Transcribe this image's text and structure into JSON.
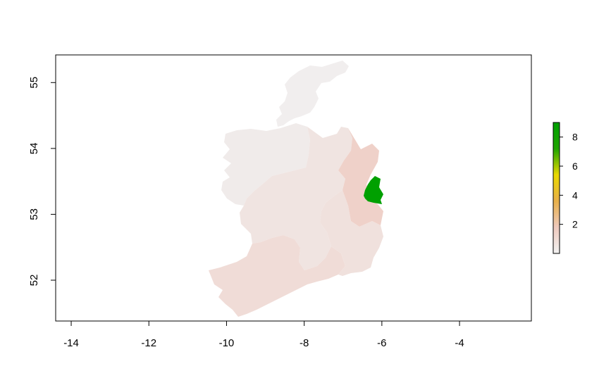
{
  "chart_data": {
    "type": "map",
    "title": "",
    "xlabel": "",
    "ylabel": "",
    "xlim": [
      -14.4,
      -2.15
    ],
    "ylim": [
      51.38,
      55.42
    ],
    "x_ticks": [
      {
        "value": -14,
        "label": "-14"
      },
      {
        "value": -12,
        "label": "-12"
      },
      {
        "value": -10,
        "label": "-10"
      },
      {
        "value": -8,
        "label": "-8"
      },
      {
        "value": -6,
        "label": "-6"
      },
      {
        "value": -4,
        "label": "-4"
      }
    ],
    "y_ticks": [
      {
        "value": 52,
        "label": "52"
      },
      {
        "value": 53,
        "label": "53"
      },
      {
        "value": 54,
        "label": "54"
      },
      {
        "value": 55,
        "label": "55"
      }
    ],
    "colorbar": {
      "min": 0,
      "max": 9,
      "ticks": [
        {
          "value": 2,
          "label": "2"
        },
        {
          "value": 4,
          "label": "4"
        },
        {
          "value": 6,
          "label": "6"
        },
        {
          "value": 8,
          "label": "8"
        }
      ],
      "colors": [
        "#f2f2f2",
        "#eec9bd",
        "#e8b04a",
        "#e9d800",
        "#1fa400",
        "#00a000"
      ]
    },
    "regions": [
      {
        "id": "north-west",
        "value": 0.1,
        "color": "#f1eeee"
      },
      {
        "id": "west",
        "value": 0.2,
        "color": "#f0ebea"
      },
      {
        "id": "midlands",
        "value": 0.4,
        "color": "#f0e4e1"
      },
      {
        "id": "south-west",
        "value": 0.7,
        "color": "#f0dcd7"
      },
      {
        "id": "south-east",
        "value": 0.5,
        "color": "#f0e1dd"
      },
      {
        "id": "mid-east",
        "value": 1.2,
        "color": "#efd1c9"
      },
      {
        "id": "dublin",
        "value": 9,
        "color": "#00a000"
      }
    ]
  }
}
